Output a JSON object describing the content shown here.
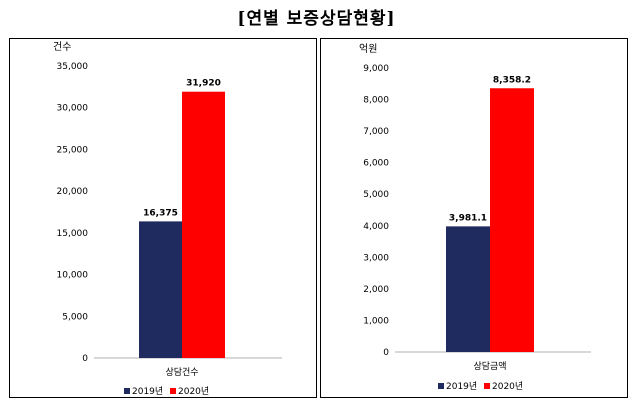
{
  "title": "[연별 보증상담현황]",
  "colors": {
    "series_2019": "#1f2b5e",
    "series_2020": "#ff0000",
    "axis": "#b0b0b0"
  },
  "chart_data": [
    {
      "type": "bar",
      "unit_label": "건수",
      "categories": [
        "상담건수"
      ],
      "series": [
        {
          "name": "2019년",
          "values": [
            16375
          ],
          "labels": [
            "16,375"
          ]
        },
        {
          "name": "2020년",
          "values": [
            31920
          ],
          "labels": [
            "31,920"
          ]
        }
      ],
      "ylim": [
        0,
        35000
      ],
      "yticks": [
        0,
        5000,
        10000,
        15000,
        20000,
        25000,
        30000,
        35000
      ],
      "ytick_labels": [
        "0",
        "5,000",
        "10,000",
        "15,000",
        "20,000",
        "25,000",
        "30,000",
        "35,000"
      ],
      "legend": "bottom",
      "grid": false
    },
    {
      "type": "bar",
      "unit_label": "억원",
      "categories": [
        "상담금액"
      ],
      "series": [
        {
          "name": "2019년",
          "values": [
            3981.1
          ],
          "labels": [
            "3,981.1"
          ]
        },
        {
          "name": "2020년",
          "values": [
            8358.2
          ],
          "labels": [
            "8,358.2"
          ]
        }
      ],
      "ylim": [
        0,
        9000
      ],
      "yticks": [
        0,
        1000,
        2000,
        3000,
        4000,
        5000,
        6000,
        7000,
        8000,
        9000
      ],
      "ytick_labels": [
        "0",
        "1,000",
        "2,000",
        "3,000",
        "4,000",
        "5,000",
        "6,000",
        "7,000",
        "8,000",
        "9,000"
      ],
      "legend": "bottom",
      "grid": false
    }
  ]
}
